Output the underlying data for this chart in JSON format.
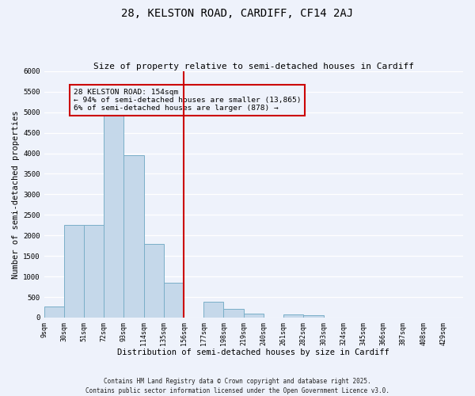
{
  "title": "28, KELSTON ROAD, CARDIFF, CF14 2AJ",
  "subtitle": "Size of property relative to semi-detached houses in Cardiff",
  "xlabel": "Distribution of semi-detached houses by size in Cardiff",
  "ylabel": "Number of semi-detached properties",
  "bin_labels": [
    "9sqm",
    "30sqm",
    "51sqm",
    "72sqm",
    "93sqm",
    "114sqm",
    "135sqm",
    "156sqm",
    "177sqm",
    "198sqm",
    "219sqm",
    "240sqm",
    "261sqm",
    "282sqm",
    "303sqm",
    "324sqm",
    "345sqm",
    "366sqm",
    "387sqm",
    "408sqm",
    "429sqm"
  ],
  "bar_values": [
    270,
    2250,
    2250,
    4950,
    3950,
    1800,
    850,
    0,
    380,
    220,
    100,
    0,
    80,
    50,
    0,
    0,
    0,
    0,
    0,
    0,
    0
  ],
  "bar_color": "#c5d8ea",
  "bar_edge_color": "#7aafc8",
  "vline_color": "#cc0000",
  "ylim": [
    0,
    6000
  ],
  "yticks": [
    0,
    500,
    1000,
    1500,
    2000,
    2500,
    3000,
    3500,
    4000,
    4500,
    5000,
    5500,
    6000
  ],
  "annotation_title": "28 KELSTON ROAD: 154sqm",
  "annotation_line1": "← 94% of semi-detached houses are smaller (13,865)",
  "annotation_line2": "6% of semi-detached houses are larger (878) →",
  "annotation_box_color": "#cc0000",
  "footnote1": "Contains HM Land Registry data © Crown copyright and database right 2025.",
  "footnote2": "Contains public sector information licensed under the Open Government Licence v3.0.",
  "bg_color": "#eef2fb",
  "grid_color": "#ffffff",
  "title_fontsize": 10,
  "subtitle_fontsize": 8,
  "bin_width": 21,
  "vline_bin_index": 7
}
